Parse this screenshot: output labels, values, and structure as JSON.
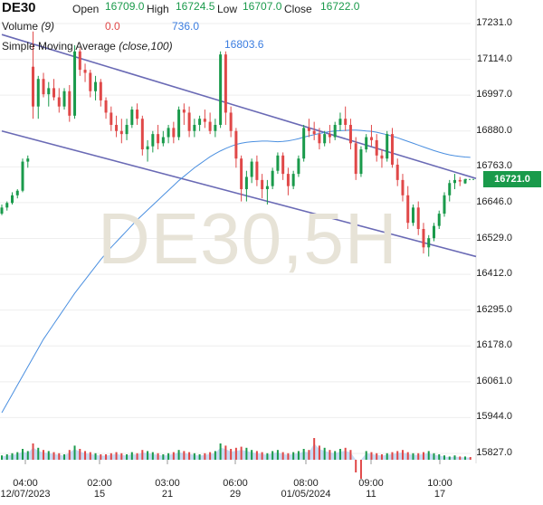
{
  "header": {
    "symbol": "DE30",
    "open_label": "Open",
    "open_value": "16709.0",
    "high_label": "High",
    "high_value": "16724.5",
    "low_label": "Low",
    "low_value": "16707.0",
    "close_label": "Close",
    "close_value": "16722.0",
    "volume_label": "Volume",
    "volume_param": "(9)",
    "volume_value_a": "0.0",
    "volume_value_b": "736.0",
    "sma_label": "Simple Moving Average",
    "sma_param": "(close,100)",
    "peak_value": "16803.6"
  },
  "watermark": "DE30,5H",
  "last_price_label": "16721.0",
  "colors": {
    "up": "#1a9a4b",
    "down": "#e04848",
    "channel": "#6a6ab5",
    "sma": "#4a8fe0",
    "volume_area": "#b9d3f2",
    "watermark": "#e7e3d7"
  },
  "chart_data": {
    "type": "candlestick",
    "title": "DE30",
    "timeframe": "5H",
    "y_ticks": [
      "17231.0",
      "17114.0",
      "16997.0",
      "16880.0",
      "16763.0",
      "16646.0",
      "16529.0",
      "16412.0",
      "16295.0",
      "16178.0",
      "16061.0",
      "15944.0",
      "15827.0"
    ],
    "ylim": [
      15800,
      17290
    ],
    "x_ticks": [
      {
        "time": "04:00",
        "date": "12/07/2023"
      },
      {
        "time": "02:00",
        "date": "15"
      },
      {
        "time": "03:00",
        "date": "21"
      },
      {
        "time": "06:00",
        "date": "29"
      },
      {
        "time": "08:00",
        "date": "01/05/2024"
      },
      {
        "time": "09:00",
        "date": "11"
      },
      {
        "time": "10:00",
        "date": "17"
      }
    ],
    "last_close": 16722.0,
    "channel_lines": [
      {
        "start_index": 0,
        "start": 17195,
        "end_index": 90,
        "end": 16725
      },
      {
        "start_index": 0,
        "start": 16880,
        "end_index": 90,
        "end": 16470
      }
    ],
    "candles": [
      [
        16610,
        16640,
        16605,
        16630
      ],
      [
        16630,
        16650,
        16620,
        16645
      ],
      [
        16645,
        16680,
        16640,
        16670
      ],
      [
        16670,
        16690,
        16660,
        16685
      ],
      [
        16685,
        16790,
        16680,
        16780
      ],
      [
        16780,
        16800,
        16760,
        16790
      ],
      [
        17090,
        17205,
        16920,
        16960
      ],
      [
        16960,
        17060,
        16920,
        17050
      ],
      [
        17050,
        17070,
        16990,
        17000
      ],
      [
        17000,
        17040,
        16960,
        17020
      ],
      [
        17020,
        17050,
        16980,
        16990
      ],
      [
        16990,
        17020,
        16940,
        16960
      ],
      [
        16960,
        17020,
        16950,
        17010
      ],
      [
        17010,
        17030,
        16910,
        16930
      ],
      [
        16930,
        17160,
        16920,
        17140
      ],
      [
        17140,
        17150,
        17060,
        17080
      ],
      [
        17080,
        17100,
        17040,
        17070
      ],
      [
        17070,
        17080,
        16990,
        17010
      ],
      [
        17010,
        17060,
        16980,
        17040
      ],
      [
        17040,
        17050,
        16960,
        16980
      ],
      [
        16980,
        16990,
        16920,
        16940
      ],
      [
        16940,
        16960,
        16880,
        16900
      ],
      [
        16900,
        16930,
        16860,
        16880
      ],
      [
        16880,
        16920,
        16840,
        16870
      ],
      [
        16870,
        16920,
        16850,
        16900
      ],
      [
        16900,
        16960,
        16890,
        16950
      ],
      [
        16950,
        16970,
        16900,
        16920
      ],
      [
        16920,
        16930,
        16800,
        16820
      ],
      [
        16820,
        16850,
        16780,
        16830
      ],
      [
        16830,
        16880,
        16810,
        16870
      ],
      [
        16870,
        16900,
        16820,
        16840
      ],
      [
        16840,
        16880,
        16830,
        16860
      ],
      [
        16860,
        16900,
        16840,
        16890
      ],
      [
        16890,
        16910,
        16840,
        16860
      ],
      [
        16860,
        16960,
        16850,
        16950
      ],
      [
        16950,
        16970,
        16900,
        16940
      ],
      [
        16940,
        16960,
        16860,
        16880
      ],
      [
        16880,
        16920,
        16860,
        16900
      ],
      [
        16900,
        16930,
        16880,
        16920
      ],
      [
        16920,
        16950,
        16890,
        16910
      ],
      [
        16910,
        16940,
        16870,
        16880
      ],
      [
        16880,
        16920,
        16860,
        16900
      ],
      [
        16900,
        17140,
        16890,
        17130
      ],
      [
        17130,
        17140,
        16900,
        16940
      ],
      [
        16940,
        16960,
        16860,
        16880
      ],
      [
        16880,
        16890,
        16760,
        16790
      ],
      [
        16790,
        16800,
        16650,
        16690
      ],
      [
        16690,
        16750,
        16650,
        16730
      ],
      [
        16730,
        16790,
        16710,
        16780
      ],
      [
        16780,
        16800,
        16700,
        16720
      ],
      [
        16720,
        16740,
        16660,
        16690
      ],
      [
        16690,
        16720,
        16640,
        16700
      ],
      [
        16700,
        16760,
        16690,
        16750
      ],
      [
        16750,
        16810,
        16740,
        16800
      ],
      [
        16800,
        16810,
        16720,
        16740
      ],
      [
        16740,
        16760,
        16670,
        16700
      ],
      [
        16700,
        16750,
        16690,
        16740
      ],
      [
        16740,
        16800,
        16730,
        16790
      ],
      [
        16790,
        16900,
        16780,
        16890
      ],
      [
        16890,
        16920,
        16860,
        16880
      ],
      [
        16880,
        16910,
        16850,
        16870
      ],
      [
        16870,
        16890,
        16820,
        16840
      ],
      [
        16840,
        16880,
        16830,
        16870
      ],
      [
        16870,
        16900,
        16840,
        16860
      ],
      [
        16860,
        16910,
        16850,
        16900
      ],
      [
        16900,
        16940,
        16880,
        16920
      ],
      [
        16920,
        16960,
        16880,
        16900
      ],
      [
        16900,
        16920,
        16820,
        16840
      ],
      [
        16840,
        16860,
        16720,
        16740
      ],
      [
        16740,
        16830,
        16730,
        16820
      ],
      [
        16820,
        16870,
        16810,
        16860
      ],
      [
        16860,
        16900,
        16830,
        16850
      ],
      [
        16850,
        16870,
        16780,
        16800
      ],
      [
        16800,
        16820,
        16760,
        16790
      ],
      [
        16790,
        16880,
        16780,
        16870
      ],
      [
        16870,
        16890,
        16760,
        16770
      ],
      [
        16770,
        16790,
        16700,
        16720
      ],
      [
        16720,
        16740,
        16650,
        16670
      ],
      [
        16670,
        16700,
        16560,
        16580
      ],
      [
        16580,
        16640,
        16570,
        16630
      ],
      [
        16630,
        16650,
        16540,
        16560
      ],
      [
        16560,
        16580,
        16480,
        16500
      ],
      [
        16500,
        16540,
        16470,
        16530
      ],
      [
        16530,
        16580,
        16520,
        16570
      ],
      [
        16570,
        16620,
        16560,
        16610
      ],
      [
        16610,
        16680,
        16600,
        16670
      ],
      [
        16670,
        16720,
        16650,
        16710
      ],
      [
        16710,
        16740,
        16690,
        16720
      ],
      [
        16720,
        16730,
        16700,
        16715
      ],
      [
        16709,
        16724.5,
        16707,
        16722
      ]
    ],
    "sma": [
      15960,
      15990,
      16020,
      16050,
      16080,
      16110,
      16140,
      16170,
      16200,
      16225,
      16250,
      16275,
      16300,
      16325,
      16350,
      16372,
      16394,
      16416,
      16438,
      16460,
      16480,
      16500,
      16518,
      16536,
      16554,
      16572,
      16590,
      16606,
      16622,
      16638,
      16654,
      16670,
      16686,
      16702,
      16718,
      16732,
      16746,
      16760,
      16772,
      16784,
      16796,
      16806,
      16815,
      16823,
      16830,
      16836,
      16840,
      16843,
      16845,
      16846,
      16847,
      16847,
      16846,
      16845,
      16846,
      16848,
      16851,
      16855,
      16860,
      16864,
      16868,
      16872,
      16875,
      16878,
      16880,
      16881,
      16882,
      16883,
      16883,
      16882,
      16880,
      16879,
      16876,
      16872,
      16868,
      16863,
      16858,
      16852,
      16846,
      16840,
      16834,
      16828,
      16822,
      16816,
      16811,
      16806,
      16802,
      16799,
      16797,
      16795,
      16794
    ],
    "volume": [
      8,
      10,
      12,
      14,
      20,
      16,
      30,
      22,
      18,
      16,
      14,
      12,
      10,
      18,
      26,
      20,
      16,
      14,
      12,
      10,
      10,
      12,
      14,
      12,
      10,
      14,
      12,
      18,
      16,
      14,
      12,
      10,
      12,
      14,
      18,
      16,
      14,
      12,
      10,
      12,
      14,
      16,
      30,
      26,
      20,
      22,
      24,
      22,
      18,
      16,
      14,
      12,
      16,
      18,
      14,
      12,
      14,
      16,
      20,
      18,
      40,
      26,
      22,
      18,
      16,
      20,
      22,
      18,
      -20,
      -30,
      16,
      14,
      12,
      10,
      12,
      14,
      16,
      18,
      14,
      12,
      12,
      14,
      16,
      12,
      10,
      8,
      6,
      8,
      6,
      6,
      5
    ]
  }
}
